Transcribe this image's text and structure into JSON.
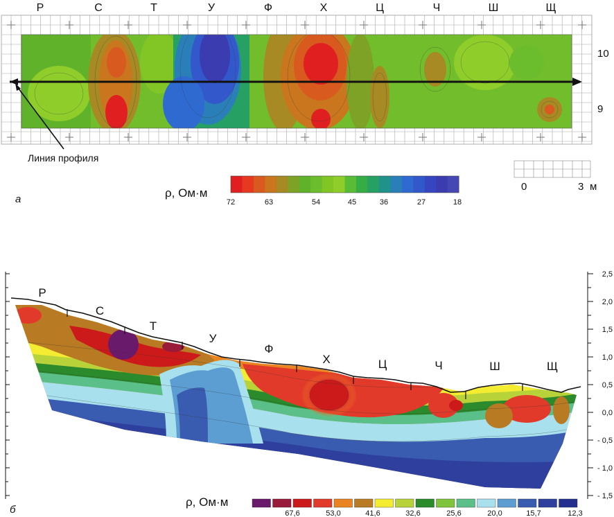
{
  "panel_a": {
    "letter": "а",
    "column_labels": [
      "Р",
      "С",
      "Т",
      "У",
      "Ф",
      "Х",
      "Ц",
      "Ч",
      "Ш",
      "Щ"
    ],
    "row_labels": [
      "10",
      "9"
    ],
    "profile_label": "Линия профиля",
    "legend_title": "ρ, Ом·м",
    "legend_ticks": [
      "72",
      "63",
      "54",
      "45",
      "36",
      "27",
      "18"
    ],
    "legend_colors": [
      "#e02020",
      "#e63a20",
      "#d85a1e",
      "#c9761e",
      "#a88a24",
      "#7da226",
      "#5fb22a",
      "#6cbd2e",
      "#82c626",
      "#8fce2a",
      "#58bd34",
      "#36ad44",
      "#27a064",
      "#21928a",
      "#2a7fb8",
      "#2e6ad0",
      "#3358cc",
      "#3646c0",
      "#3b3caf",
      "#4646b4"
    ],
    "scale_labels": [
      "0",
      "3",
      "м"
    ]
  },
  "panel_b": {
    "letter": "б",
    "column_labels": [
      "Р",
      "С",
      "Т",
      "У",
      "Ф",
      "Х",
      "Ц",
      "Ч",
      "Ш",
      "Щ"
    ],
    "axis_labels": [
      "2,5",
      "2,0",
      "1,5",
      "1,0",
      "0,5",
      "0,0",
      "- 0,5",
      "- 1,0",
      "- 1,5"
    ],
    "legend_title": "ρ, Ом·м",
    "legend_ticks": [
      "67,6",
      "53,0",
      "41,6",
      "32,6",
      "25,6",
      "20,0",
      "15,7",
      "12,3"
    ],
    "legend_colors": [
      "#6a1a6a",
      "#9a1a3a",
      "#cc1a1a",
      "#e23a2a",
      "#ea8420",
      "#b87a22",
      "#f3ec30",
      "#b8d33a",
      "#2b8a2b",
      "#7fc43a",
      "#5bbf8a",
      "#a8e0ee",
      "#5c9ed2",
      "#3a5cb0",
      "#2e3f9e",
      "#243090"
    ]
  }
}
